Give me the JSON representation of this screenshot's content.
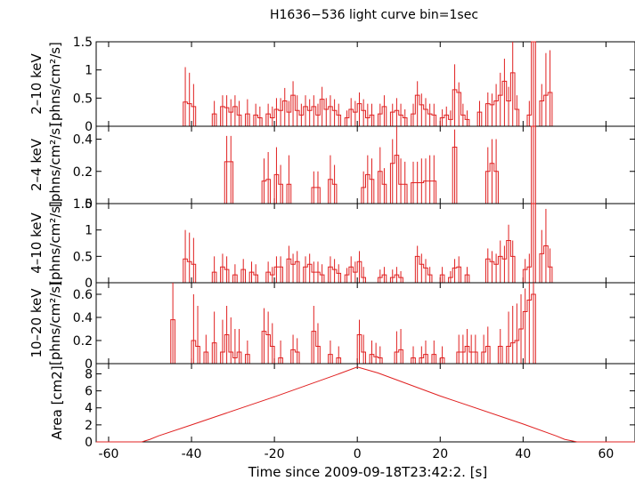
{
  "chart_data": {
    "type": "line",
    "title": "H1636−536 light curve bin=1sec",
    "xlabel": "Time since 2009-09-18T23:42:2. [s]",
    "xlim": [
      -63,
      67
    ],
    "xticks": [
      -60,
      -40,
      -20,
      0,
      20,
      40,
      60
    ],
    "colors": {
      "data": "#e02020",
      "axes": "#000000"
    },
    "panels": [
      {
        "name": "2-10keV",
        "ylabel_lines": [
          "2–10 keV",
          "[phns/cm²/s]"
        ],
        "ylim": [
          0,
          1.5
        ],
        "yticks": [
          0,
          0.5,
          1,
          1.5
        ],
        "ytick_labels": [
          "0",
          "0.5",
          "1",
          "1.5"
        ],
        "bins": [
          [
            -42,
            0.43,
            1.05
          ],
          [
            -41,
            0.4,
            0.95
          ],
          [
            -40,
            0.35,
            0.75
          ],
          [
            -35,
            0.22,
            0.45
          ],
          [
            -33,
            0.35,
            0.55
          ],
          [
            -32,
            0.33,
            0.55
          ],
          [
            -31,
            0.25,
            0.48
          ],
          [
            -30,
            0.35,
            0.55
          ],
          [
            -29,
            0.2,
            0.45
          ],
          [
            -27,
            0.22,
            0.48
          ],
          [
            -25,
            0.2,
            0.4
          ],
          [
            -24,
            0.15,
            0.35
          ],
          [
            -22,
            0.22,
            0.4
          ],
          [
            -21,
            0.15,
            0.35
          ],
          [
            -20,
            0.3,
            0.5
          ],
          [
            -19,
            0.28,
            0.5
          ],
          [
            -18,
            0.45,
            0.68
          ],
          [
            -17,
            0.25,
            0.45
          ],
          [
            -16,
            0.55,
            0.8
          ],
          [
            -15,
            0.28,
            0.55
          ],
          [
            -14,
            0.2,
            0.4
          ],
          [
            -13,
            0.35,
            0.55
          ],
          [
            -12,
            0.28,
            0.48
          ],
          [
            -11,
            0.35,
            0.55
          ],
          [
            -10,
            0.2,
            0.4
          ],
          [
            -9,
            0.48,
            0.7
          ],
          [
            -8,
            0.3,
            0.5
          ],
          [
            -7,
            0.35,
            0.55
          ],
          [
            -6,
            0.28,
            0.48
          ],
          [
            -5,
            0.2,
            0.4
          ],
          [
            -3,
            0.15,
            0.28
          ],
          [
            -2,
            0.3,
            0.5
          ],
          [
            -1,
            0.25,
            0.45
          ],
          [
            0,
            0.4,
            0.6
          ],
          [
            1,
            0.28,
            0.48
          ],
          [
            2,
            0.15,
            0.4
          ],
          [
            3,
            0.2,
            0.4
          ],
          [
            5,
            0.22,
            0.4
          ],
          [
            6,
            0.35,
            0.55
          ],
          [
            8,
            0.25,
            0.4
          ],
          [
            9,
            0.28,
            0.5
          ],
          [
            10,
            0.2,
            0.4
          ],
          [
            11,
            0.15,
            0.3
          ],
          [
            13,
            0.22,
            0.4
          ],
          [
            14,
            0.55,
            0.8
          ],
          [
            15,
            0.38,
            0.58
          ],
          [
            16,
            0.3,
            0.5
          ],
          [
            17,
            0.22,
            0.4
          ],
          [
            18,
            0.2,
            0.4
          ],
          [
            20,
            0.15,
            0.3
          ],
          [
            21,
            0.2,
            0.35
          ],
          [
            22,
            0.12,
            0.28
          ],
          [
            23,
            0.65,
            1.1
          ],
          [
            24,
            0.6,
            0.78
          ],
          [
            25,
            0.2,
            0.4
          ],
          [
            26,
            0.12,
            0.28
          ],
          [
            29,
            0.25,
            0.45
          ],
          [
            31,
            0.4,
            0.6
          ],
          [
            32,
            0.38,
            0.58
          ],
          [
            33,
            0.45,
            0.75
          ],
          [
            34,
            0.55,
            0.95
          ],
          [
            35,
            0.8,
            1.2
          ],
          [
            36,
            0.45,
            0.7
          ],
          [
            37,
            0.95,
            1.5
          ],
          [
            38,
            0.3,
            0.55
          ],
          [
            41,
            0.2,
            0.45
          ],
          [
            42,
            1.5,
            1.5
          ],
          [
            44,
            0.45,
            0.75
          ],
          [
            45,
            0.55,
            1.3
          ],
          [
            46,
            0.6,
            1.35
          ]
        ]
      },
      {
        "name": "2-4keV",
        "ylabel_lines": [
          "2–4 keV",
          "[phns/cm²/s]"
        ],
        "ylim": [
          0,
          0.48
        ],
        "yticks": [
          0,
          0.2,
          0.4
        ],
        "ytick_labels": [
          "0",
          "0.2",
          "0.4"
        ],
        "bins": [
          [
            -32,
            0.26,
            0.42
          ],
          [
            -31,
            0.26,
            0.42
          ],
          [
            -23,
            0.14,
            0.28
          ],
          [
            -22,
            0.15,
            0.32
          ],
          [
            -20,
            0.18,
            0.35
          ],
          [
            -19,
            0.12,
            0.24
          ],
          [
            -17,
            0.12,
            0.3
          ],
          [
            -11,
            0.1,
            0.2
          ],
          [
            -10,
            0.1,
            0.2
          ],
          [
            -7,
            0.15,
            0.3
          ],
          [
            -6,
            0.12,
            0.24
          ],
          [
            1,
            0.1,
            0.2
          ],
          [
            2,
            0.18,
            0.3
          ],
          [
            3,
            0.15,
            0.28
          ],
          [
            5,
            0.2,
            0.35
          ],
          [
            6,
            0.12,
            0.22
          ],
          [
            8,
            0.25,
            0.4
          ],
          [
            9,
            0.3,
            0.48
          ],
          [
            10,
            0.12,
            0.28
          ],
          [
            11,
            0.12,
            0.26
          ],
          [
            13,
            0.13,
            0.26
          ],
          [
            14,
            0.13,
            0.26
          ],
          [
            15,
            0.13,
            0.28
          ],
          [
            16,
            0.14,
            0.28
          ],
          [
            17,
            0.14,
            0.3
          ],
          [
            18,
            0.14,
            0.3
          ],
          [
            23,
            0.35,
            0.46
          ],
          [
            31,
            0.2,
            0.35
          ],
          [
            32,
            0.25,
            0.4
          ],
          [
            33,
            0.2,
            0.4
          ],
          [
            42,
            0.48,
            0.48
          ]
        ]
      },
      {
        "name": "4-10keV",
        "ylabel_lines": [
          "4–10 keV",
          "[phns/cm²/s]"
        ],
        "ylim": [
          0,
          1.5
        ],
        "yticks": [
          0,
          0.5,
          1,
          1.5
        ],
        "ytick_labels": [
          "0",
          "0.5",
          "1",
          "1.5"
        ],
        "bins": [
          [
            -42,
            0.45,
            1.0
          ],
          [
            -41,
            0.4,
            0.95
          ],
          [
            -40,
            0.35,
            0.85
          ],
          [
            -35,
            0.2,
            0.5
          ],
          [
            -33,
            0.3,
            0.55
          ],
          [
            -32,
            0.25,
            0.5
          ],
          [
            -30,
            0.15,
            0.35
          ],
          [
            -28,
            0.25,
            0.45
          ],
          [
            -26,
            0.2,
            0.4
          ],
          [
            -25,
            0.15,
            0.35
          ],
          [
            -22,
            0.2,
            0.4
          ],
          [
            -21,
            0.15,
            0.3
          ],
          [
            -20,
            0.3,
            0.5
          ],
          [
            -19,
            0.3,
            0.5
          ],
          [
            -17,
            0.45,
            0.7
          ],
          [
            -16,
            0.35,
            0.55
          ],
          [
            -15,
            0.4,
            0.6
          ],
          [
            -13,
            0.3,
            0.5
          ],
          [
            -12,
            0.35,
            0.55
          ],
          [
            -11,
            0.2,
            0.4
          ],
          [
            -10,
            0.2,
            0.4
          ],
          [
            -9,
            0.15,
            0.35
          ],
          [
            -7,
            0.3,
            0.5
          ],
          [
            -6,
            0.25,
            0.45
          ],
          [
            -5,
            0.18,
            0.35
          ],
          [
            -3,
            0.15,
            0.28
          ],
          [
            -2,
            0.3,
            0.5
          ],
          [
            -1,
            0.2,
            0.4
          ],
          [
            0,
            0.4,
            0.6
          ],
          [
            1,
            0.1,
            0.3
          ],
          [
            5,
            0.1,
            0.25
          ],
          [
            6,
            0.15,
            0.3
          ],
          [
            8,
            0.1,
            0.25
          ],
          [
            9,
            0.15,
            0.3
          ],
          [
            10,
            0.1,
            0.22
          ],
          [
            14,
            0.5,
            0.7
          ],
          [
            15,
            0.35,
            0.55
          ],
          [
            16,
            0.28,
            0.45
          ],
          [
            17,
            0.15,
            0.3
          ],
          [
            20,
            0.15,
            0.3
          ],
          [
            22,
            0.1,
            0.22
          ],
          [
            23,
            0.28,
            0.45
          ],
          [
            24,
            0.3,
            0.5
          ],
          [
            26,
            0.15,
            0.3
          ],
          [
            31,
            0.45,
            0.65
          ],
          [
            32,
            0.4,
            0.6
          ],
          [
            33,
            0.35,
            0.55
          ],
          [
            34,
            0.5,
            0.8
          ],
          [
            35,
            0.45,
            0.7
          ],
          [
            36,
            0.8,
            1.1
          ],
          [
            37,
            0.5,
            0.8
          ],
          [
            40,
            0.25,
            0.45
          ],
          [
            41,
            0.3,
            0.55
          ],
          [
            42,
            1.5,
            1.5
          ],
          [
            44,
            0.55,
            1.0
          ],
          [
            45,
            0.7,
            1.4
          ],
          [
            46,
            0.3,
            0.65
          ]
        ]
      },
      {
        "name": "10-20keV",
        "ylabel_lines": [
          "10–20 keV",
          "[phns/cm²/s]"
        ],
        "ylim": [
          0,
          0.7
        ],
        "yticks": [
          0,
          0.2,
          0.4,
          0.6
        ],
        "ytick_labels": [
          "0",
          "0.2",
          "0.4",
          "0.6"
        ],
        "bins": [
          [
            -45,
            0.38,
            0.7
          ],
          [
            -40,
            0.2,
            0.6
          ],
          [
            -39,
            0.15,
            0.5
          ],
          [
            -37,
            0.1,
            0.25
          ],
          [
            -35,
            0.18,
            0.45
          ],
          [
            -33,
            0.1,
            0.38
          ],
          [
            -32,
            0.25,
            0.5
          ],
          [
            -31,
            0.1,
            0.4
          ],
          [
            -30,
            0.05,
            0.3
          ],
          [
            -29,
            0.1,
            0.3
          ],
          [
            -27,
            0.08,
            0.2
          ],
          [
            -23,
            0.28,
            0.48
          ],
          [
            -22,
            0.25,
            0.45
          ],
          [
            -21,
            0.15,
            0.35
          ],
          [
            -19,
            0.05,
            0.2
          ],
          [
            -16,
            0.12,
            0.25
          ],
          [
            -15,
            0.1,
            0.22
          ],
          [
            -11,
            0.28,
            0.5
          ],
          [
            -10,
            0.15,
            0.35
          ],
          [
            -7,
            0.08,
            0.2
          ],
          [
            -5,
            0.05,
            0.15
          ],
          [
            0,
            0.25,
            0.38
          ],
          [
            1,
            0.1,
            0.25
          ],
          [
            3,
            0.08,
            0.2
          ],
          [
            4,
            0.06,
            0.18
          ],
          [
            5,
            0.05,
            0.15
          ],
          [
            9,
            0.1,
            0.28
          ],
          [
            10,
            0.12,
            0.3
          ],
          [
            13,
            0.05,
            0.15
          ],
          [
            15,
            0.05,
            0.15
          ],
          [
            16,
            0.08,
            0.2
          ],
          [
            18,
            0.08,
            0.2
          ],
          [
            20,
            0.05,
            0.15
          ],
          [
            24,
            0.1,
            0.25
          ],
          [
            25,
            0.1,
            0.25
          ],
          [
            26,
            0.15,
            0.3
          ],
          [
            27,
            0.1,
            0.25
          ],
          [
            28,
            0.1,
            0.25
          ],
          [
            30,
            0.1,
            0.25
          ],
          [
            31,
            0.15,
            0.32
          ],
          [
            34,
            0.15,
            0.3
          ],
          [
            36,
            0.15,
            0.45
          ],
          [
            37,
            0.18,
            0.5
          ],
          [
            38,
            0.2,
            0.52
          ],
          [
            39,
            0.3,
            0.6
          ],
          [
            40,
            0.45,
            0.65
          ],
          [
            41,
            0.55,
            0.7
          ],
          [
            42,
            0.6,
            0.7
          ]
        ]
      },
      {
        "name": "area",
        "ylabel_lines": [
          "Area [cm2]"
        ],
        "ylim": [
          0,
          9.2
        ],
        "yticks": [
          0,
          2,
          4,
          6,
          8
        ],
        "ytick_labels": [
          "0",
          "2",
          "4",
          "6",
          "8"
        ],
        "curve": [
          [
            -63,
            0
          ],
          [
            -52,
            0
          ],
          [
            -50,
            0.3
          ],
          [
            -48,
            0.7
          ],
          [
            -40,
            2.0
          ],
          [
            -20,
            5.3
          ],
          [
            -5,
            7.9
          ],
          [
            0,
            8.8
          ],
          [
            5,
            8.1
          ],
          [
            20,
            5.4
          ],
          [
            40,
            2.1
          ],
          [
            48,
            0.7
          ],
          [
            50,
            0.3
          ],
          [
            53,
            0
          ],
          [
            67,
            0
          ]
        ]
      }
    ]
  }
}
